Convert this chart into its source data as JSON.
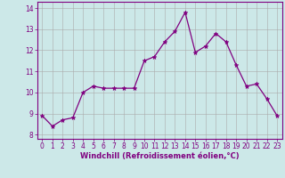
{
  "x": [
    0,
    1,
    2,
    3,
    4,
    5,
    6,
    7,
    8,
    9,
    10,
    11,
    12,
    13,
    14,
    15,
    16,
    17,
    18,
    19,
    20,
    21,
    22,
    23
  ],
  "y": [
    8.9,
    8.4,
    8.7,
    8.8,
    10.0,
    10.3,
    10.2,
    10.2,
    10.2,
    10.2,
    11.5,
    11.7,
    12.4,
    12.9,
    13.8,
    11.9,
    12.2,
    12.8,
    12.4,
    11.3,
    10.3,
    10.4,
    9.7,
    8.9
  ],
  "line_color": "#800080",
  "marker": "*",
  "marker_size": 3.5,
  "xlim": [
    -0.5,
    23.5
  ],
  "ylim": [
    7.8,
    14.3
  ],
  "yticks": [
    8,
    9,
    10,
    11,
    12,
    13,
    14
  ],
  "xticks": [
    0,
    1,
    2,
    3,
    4,
    5,
    6,
    7,
    8,
    9,
    10,
    11,
    12,
    13,
    14,
    15,
    16,
    17,
    18,
    19,
    20,
    21,
    22,
    23
  ],
  "xlabel": "Windchill (Refroidissement éolien,°C)",
  "bg_color": "#cce8e8",
  "grid_color": "#aaaaaa",
  "tick_color": "#800080",
  "label_color": "#800080",
  "tick_fontsize": 5.5,
  "xlabel_fontsize": 6.0,
  "spine_color": "#800080",
  "linewidth": 0.9
}
